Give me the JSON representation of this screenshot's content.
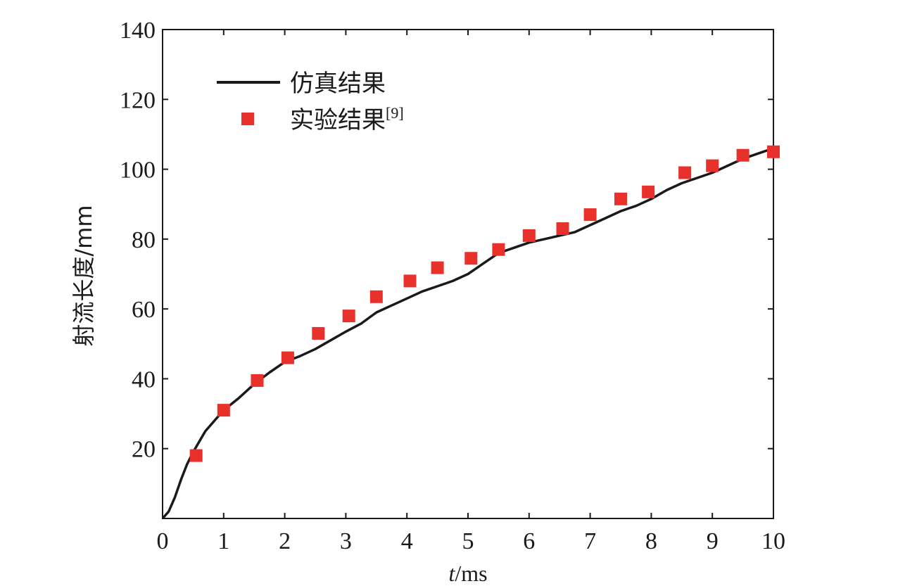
{
  "chart_data": {
    "type": "line+scatter",
    "xlabel_italic": "t",
    "xlabel_unit": "/ms",
    "ylabel": "射流长度/mm",
    "xlim": [
      0,
      10
    ],
    "ylim": [
      0,
      140
    ],
    "x_ticks": [
      0,
      1,
      2,
      3,
      4,
      5,
      6,
      7,
      8,
      9,
      10
    ],
    "y_ticks": [
      20,
      40,
      60,
      80,
      100,
      120,
      140
    ],
    "legend": {
      "position": "top-left",
      "line_label": "仿真结果",
      "marker_label": "实验结果",
      "marker_label_sup": "[9]"
    },
    "series": [
      {
        "name": "仿真结果",
        "kind": "line",
        "color": "#1a1a1a",
        "points": [
          [
            0.0,
            0.0
          ],
          [
            0.1,
            2.0
          ],
          [
            0.2,
            6.0
          ],
          [
            0.3,
            11.0
          ],
          [
            0.4,
            15.5
          ],
          [
            0.5,
            19.0
          ],
          [
            0.6,
            22.0
          ],
          [
            0.7,
            25.0
          ],
          [
            0.8,
            27.0
          ],
          [
            0.9,
            29.0
          ],
          [
            1.0,
            31.0
          ],
          [
            1.25,
            34.5
          ],
          [
            1.5,
            38.5
          ],
          [
            1.75,
            41.8
          ],
          [
            2.0,
            44.8
          ],
          [
            2.25,
            46.5
          ],
          [
            2.5,
            48.5
          ],
          [
            2.75,
            51.0
          ],
          [
            3.0,
            53.5
          ],
          [
            3.25,
            55.8
          ],
          [
            3.5,
            59.0
          ],
          [
            3.75,
            61.0
          ],
          [
            4.0,
            63.0
          ],
          [
            4.25,
            65.0
          ],
          [
            4.5,
            66.5
          ],
          [
            4.75,
            68.0
          ],
          [
            5.0,
            70.0
          ],
          [
            5.25,
            73.0
          ],
          [
            5.5,
            76.0
          ],
          [
            5.75,
            77.5
          ],
          [
            6.0,
            79.0
          ],
          [
            6.25,
            80.0
          ],
          [
            6.5,
            81.0
          ],
          [
            6.75,
            82.0
          ],
          [
            7.0,
            84.0
          ],
          [
            7.25,
            86.0
          ],
          [
            7.5,
            88.0
          ],
          [
            7.75,
            89.5
          ],
          [
            8.0,
            91.5
          ],
          [
            8.25,
            94.0
          ],
          [
            8.5,
            96.0
          ],
          [
            8.75,
            97.5
          ],
          [
            9.0,
            99.0
          ],
          [
            9.25,
            101.0
          ],
          [
            9.5,
            103.0
          ],
          [
            9.75,
            104.5
          ],
          [
            10.0,
            106.0
          ]
        ]
      },
      {
        "name": "实验结果",
        "kind": "scatter",
        "color": "#e8312b",
        "points": [
          [
            0.55,
            18.0
          ],
          [
            1.0,
            31.0
          ],
          [
            1.55,
            39.5
          ],
          [
            2.05,
            46.0
          ],
          [
            2.55,
            53.0
          ],
          [
            3.05,
            58.0
          ],
          [
            3.5,
            63.5
          ],
          [
            4.05,
            68.0
          ],
          [
            4.5,
            71.8
          ],
          [
            5.05,
            74.5
          ],
          [
            5.5,
            77.0
          ],
          [
            6.0,
            81.0
          ],
          [
            6.55,
            83.0
          ],
          [
            7.0,
            87.0
          ],
          [
            7.5,
            91.5
          ],
          [
            7.95,
            93.5
          ],
          [
            8.55,
            99.0
          ],
          [
            9.0,
            101.0
          ],
          [
            9.5,
            104.0
          ],
          [
            10.0,
            105.0
          ]
        ]
      }
    ]
  }
}
